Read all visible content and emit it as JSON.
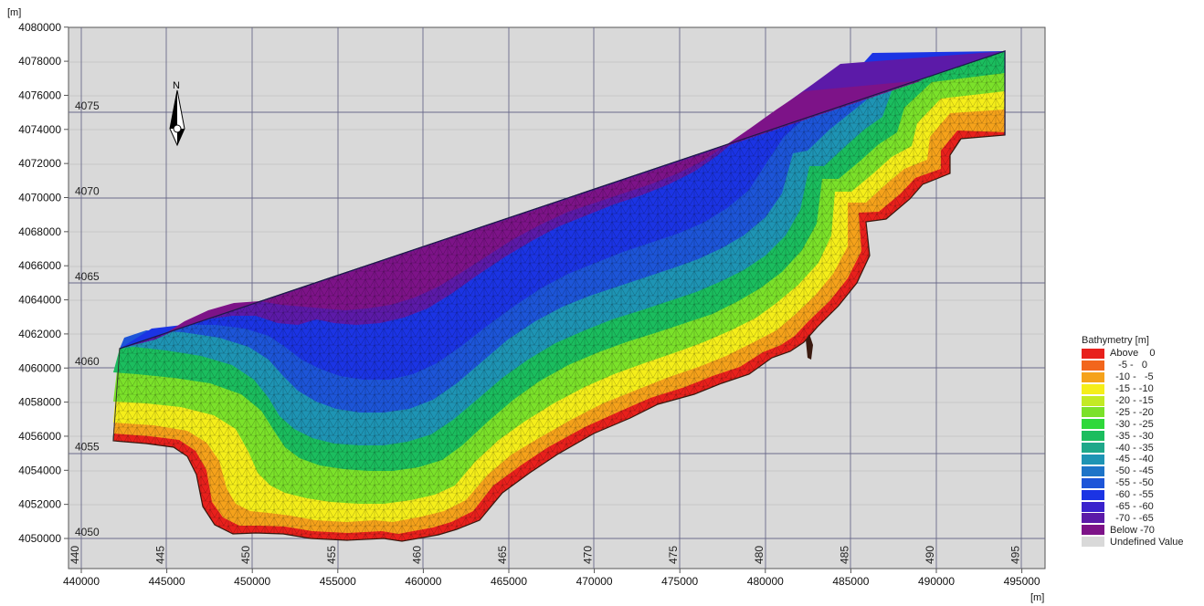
{
  "map": {
    "y_unit": "[m]",
    "x_unit": "[m]",
    "north_label": "N",
    "x_ticks": [
      "440000",
      "445000",
      "450000",
      "455000",
      "460000",
      "465000",
      "470000",
      "475000",
      "480000",
      "485000",
      "490000",
      "495000"
    ],
    "y_ticks": [
      "4050000",
      "4052000",
      "4054000",
      "4056000",
      "4058000",
      "4060000",
      "4062000",
      "4064000",
      "4066000",
      "4068000",
      "4070000",
      "4072000",
      "4074000",
      "4076000",
      "4078000",
      "4080000"
    ],
    "utm_x_labels": [
      "440",
      "445",
      "450",
      "455",
      "460",
      "465",
      "470",
      "475",
      "480",
      "485",
      "490",
      "495"
    ],
    "utm_y_labels": [
      "4050",
      "4055",
      "4060",
      "4065",
      "4070",
      "4075"
    ],
    "colors": {
      "background": "#d9d9d9",
      "land_edge": "#3a1a10"
    }
  },
  "legend": {
    "title": "Bathymetry [m]",
    "items": [
      {
        "label": "Above    0",
        "color": "#e8201c"
      },
      {
        "label": "   -5 -   0",
        "color": "#f2661c"
      },
      {
        "label": "  -10 -   -5",
        "color": "#f5a21b"
      },
      {
        "label": "  -15 - -10",
        "color": "#f5ee1a"
      },
      {
        "label": "  -20 - -15",
        "color": "#c3ea24"
      },
      {
        "label": "  -25 - -20",
        "color": "#7be12a"
      },
      {
        "label": "  -30 - -25",
        "color": "#2fd83a"
      },
      {
        "label": "  -35 - -30",
        "color": "#1bbd5e"
      },
      {
        "label": "  -40 - -35",
        "color": "#1fa88a"
      },
      {
        "label": "  -45 - -40",
        "color": "#1e94b4"
      },
      {
        "label": "  -50 - -45",
        "color": "#1e74c8"
      },
      {
        "label": "  -55 - -50",
        "color": "#1d55d8"
      },
      {
        "label": "  -60 - -55",
        "color": "#1b34e4"
      },
      {
        "label": "  -65 - -60",
        "color": "#3a22cc"
      },
      {
        "label": "  -70 - -65",
        "color": "#5c1aa8"
      },
      {
        "label": "Below -70",
        "color": "#7d1388"
      },
      {
        "label": "Undefined Value",
        "color": "#d9d9d9"
      }
    ]
  }
}
